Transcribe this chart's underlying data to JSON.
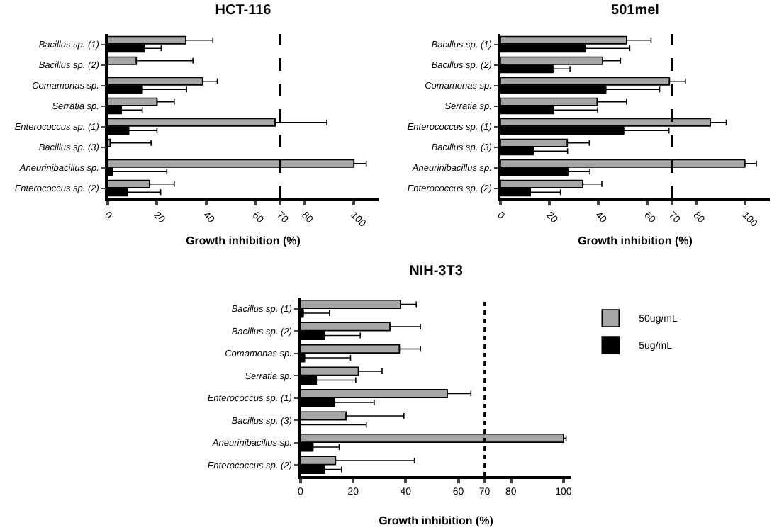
{
  "chart_data": [
    {
      "type": "bar",
      "orientation": "horizontal",
      "title": "HCT-116",
      "xlabel": "Growth inhibition (%)",
      "categories": [
        "Bacillus sp. (1)",
        "Bacillus sp. (2)",
        "Comamonas sp.",
        "Serratia sp.",
        "Enterococcus sp. (1)",
        "Bacillus sp. (3)",
        "Aneurinibacillus sp.",
        "Enterococcus sp. (2)"
      ],
      "series": [
        {
          "color": "#a6a6a6",
          "values": [
            31.7,
            11.6,
            38.5,
            20,
            68,
            1,
            100,
            17
          ],
          "errors": [
            11,
            23,
            6,
            7,
            21,
            16.6,
            5,
            10
          ]
        },
        {
          "color": "#000000",
          "values": [
            14.7,
            0,
            14,
            5.5,
            8.5,
            0,
            2,
            8
          ],
          "errors": [
            7,
            null,
            18,
            8.5,
            11.5,
            null,
            22,
            13.5
          ]
        }
      ],
      "xlim": [
        0,
        110
      ],
      "xticks": [
        0,
        20,
        40,
        60,
        70,
        80,
        100
      ],
      "ref_lines": [
        {
          "axis": "x",
          "value": 70,
          "line_style": "dashed"
        }
      ],
      "grid": false,
      "legend": false
    },
    {
      "type": "bar",
      "orientation": "horizontal",
      "title": "501mel",
      "xlabel": "Growth inhibition (%)",
      "categories": [
        "Bacillus sp. (1)",
        "Bacillus sp. (2)",
        "Comamonas sp.",
        "Serratia sp.",
        "Enterococcus sp. (1)",
        "Bacillus sp. (3)",
        "Aneurinibacillus sp.",
        "Enterococcus sp. (2)"
      ],
      "series": [
        {
          "color": "#a6a6a6",
          "values": [
            51.5,
            41.7,
            69,
            39.5,
            85.7,
            27.3,
            99.8,
            33.6
          ],
          "errors": [
            10,
            7.3,
            6.5,
            12,
            6.5,
            9,
            4.7,
            7.8
          ]
        },
        {
          "color": "#000000",
          "values": [
            34.8,
            21.4,
            43,
            21.7,
            50.3,
            13.4,
            27.5,
            12.2
          ],
          "errors": [
            18,
            7,
            22,
            18,
            18.5,
            14,
            9,
            12.3
          ]
        }
      ],
      "xlim": [
        0,
        110
      ],
      "xticks": [
        0,
        20,
        40,
        60,
        70,
        80,
        100
      ],
      "ref_lines": [
        {
          "axis": "x",
          "value": 70,
          "line_style": "dashed"
        }
      ],
      "grid": false,
      "legend": false
    },
    {
      "type": "bar",
      "orientation": "horizontal",
      "title": "NIH-3T3",
      "xlabel": "Growth inhibition (%)",
      "categories": [
        "Bacillus sp. (1)",
        "Bacillus sp. (2)",
        "Comamonas sp.",
        "Serratia sp.",
        "Enterococcus sp. (1)",
        "Bacillus sp. (3)",
        "Aneurinibacillus sp.",
        "Enterococcus sp. (2)"
      ],
      "series": [
        {
          "name": "50ug/mL",
          "color": "#a6a6a6",
          "values": [
            38,
            34,
            37.6,
            22,
            55.8,
            17.3,
            100,
            13.3
          ],
          "errors": [
            6,
            11.6,
            8,
            9,
            9,
            22,
            1,
            30
          ]
        },
        {
          "name": "5ug/mL",
          "color": "#000000",
          "values": [
            1,
            9,
            1.5,
            6,
            13,
            0,
            4.7,
            9
          ],
          "errors": [
            10,
            13.7,
            17.5,
            15,
            15,
            25,
            10,
            6.6
          ]
        }
      ],
      "xlim": [
        0,
        103
      ],
      "xticks": [
        0,
        20,
        40,
        60,
        70,
        80,
        100
      ],
      "ref_lines": [
        {
          "axis": "x",
          "value": 70,
          "line_style": "dotted"
        }
      ],
      "grid": false,
      "legend": "top right"
    }
  ]
}
